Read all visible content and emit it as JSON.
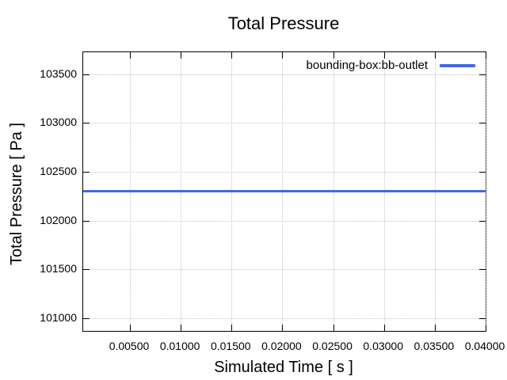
{
  "chart_data": {
    "type": "line",
    "title": "Total Pressure",
    "xlabel": "Simulated Time [ s ]",
    "ylabel": "Total Pressure [ Pa ]",
    "xlim": [
      0.0004,
      0.04
    ],
    "ylim": [
      100870,
      103725
    ],
    "xticks": [
      0.005,
      0.01,
      0.015,
      0.02,
      0.025,
      0.03,
      0.035,
      0.04
    ],
    "xtick_labels": [
      "0.00500",
      "0.01000",
      "0.01500",
      "0.02000",
      "0.02500",
      "0.03000",
      "0.03500",
      "0.04000"
    ],
    "yticks": [
      101000,
      101500,
      102000,
      102500,
      103000,
      103500
    ],
    "ytick_labels": [
      "101000",
      "101500",
      "102000",
      "102500",
      "103000",
      "103500"
    ],
    "grid": true,
    "legend_position": "top-right-inside",
    "series": [
      {
        "name": "bounding-box:bb-outlet",
        "color": "#4169e1",
        "linewidth": 3,
        "x": [
          0.0004,
          0.04
        ],
        "values": [
          102300,
          102300
        ]
      }
    ],
    "colors": {
      "grid": "#c4c4c4",
      "border": "#000000",
      "text": "#000000",
      "background": "#ffffff"
    }
  }
}
